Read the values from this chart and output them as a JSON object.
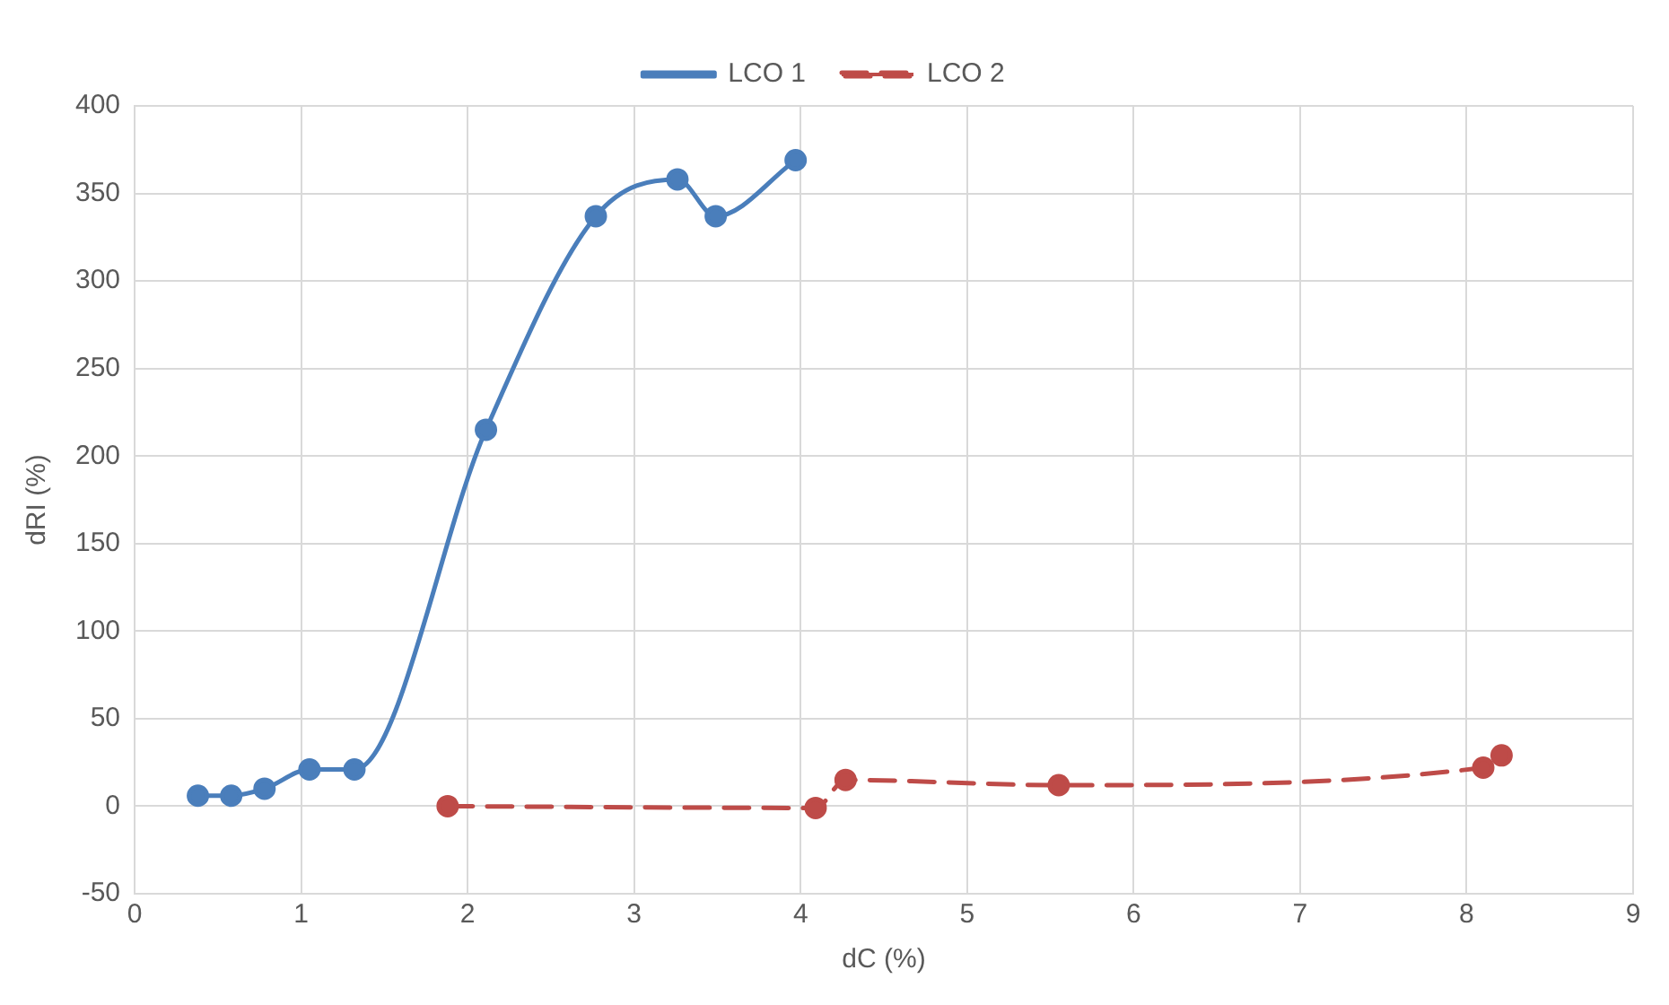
{
  "chart_data": {
    "type": "line",
    "xlabel": "dC (%)",
    "ylabel": "dRI (%)",
    "xlim": [
      0,
      9
    ],
    "xticks": [
      0,
      1,
      2,
      3,
      4,
      5,
      6,
      7,
      8,
      9
    ],
    "ylim": [
      -50,
      400
    ],
    "yticks": [
      -50,
      0,
      50,
      100,
      150,
      200,
      250,
      300,
      350,
      400
    ],
    "grid": true,
    "legend": "top",
    "marker": "circle",
    "series": [
      {
        "name": "LCO 1",
        "color": "#4a7ebb",
        "line_style": "solid",
        "x": [
          0.38,
          0.58,
          0.78,
          1.05,
          1.32,
          2.11,
          2.77,
          3.26,
          3.49,
          3.97
        ],
        "values": [
          6,
          6,
          10,
          21,
          21,
          215,
          337,
          358,
          337,
          369
        ]
      },
      {
        "name": "LCO 2",
        "color": "#be4b48",
        "line_style": "dashed",
        "x": [
          1.88,
          4.09,
          4.27,
          5.55,
          8.1,
          8.21
        ],
        "values": [
          0,
          -1,
          15,
          12,
          22,
          29
        ]
      }
    ]
  }
}
